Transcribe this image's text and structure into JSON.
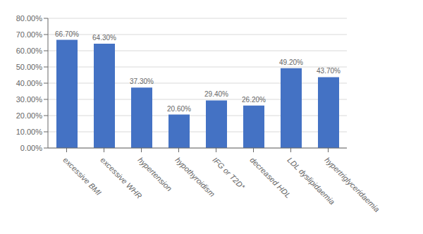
{
  "chart_data": {
    "type": "bar",
    "categories": [
      "excessive BMI",
      "excessive WHR",
      "hypertension",
      "hypothyroidism",
      "IFG or T2D*",
      "decreased HDL",
      "LDL dyslipidaemia",
      "hypertriglyceridaemia"
    ],
    "values": [
      66.7,
      64.3,
      37.3,
      20.6,
      29.4,
      26.2,
      49.2,
      43.7
    ],
    "value_labels": [
      "66.70%",
      "64.30%",
      "37.30%",
      "20.60%",
      "29.40%",
      "26.20%",
      "49.20%",
      "43.70%"
    ],
    "data_labels": true,
    "color": "#4472C4",
    "ylim": [
      0,
      80
    ],
    "yticks": [
      {
        "value": 0,
        "label": "0.00%"
      },
      {
        "value": 10,
        "label": "10.00%"
      },
      {
        "value": 20,
        "label": "20.00%"
      },
      {
        "value": 30,
        "label": "30.00%"
      },
      {
        "value": 40,
        "label": "40.00%"
      },
      {
        "value": 50,
        "label": "50.00%"
      },
      {
        "value": 60,
        "label": "60.00%"
      },
      {
        "value": 70,
        "label": "70.00%"
      },
      {
        "value": 80,
        "label": "80.00%"
      }
    ],
    "grid": true
  }
}
